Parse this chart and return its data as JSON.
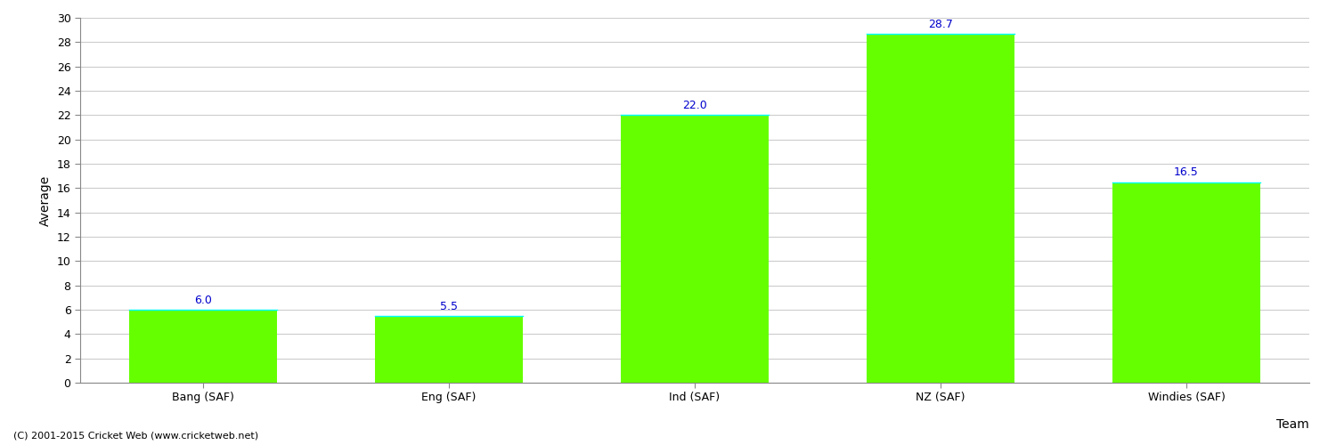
{
  "categories": [
    "Bang (SAF)",
    "Eng (SAF)",
    "Ind (SAF)",
    "NZ (SAF)",
    "Windies (SAF)"
  ],
  "values": [
    6.0,
    5.5,
    22.0,
    28.7,
    16.5
  ],
  "bar_color": "#66ff00",
  "bar_edgecolor": "#66ff00",
  "bar_top_edge_color": "#00ffff",
  "label_color": "#0000cc",
  "xlabel": "Team",
  "ylabel": "Average",
  "ylim": [
    0,
    30
  ],
  "yticks": [
    0,
    2,
    4,
    6,
    8,
    10,
    12,
    14,
    16,
    18,
    20,
    22,
    24,
    26,
    28,
    30
  ],
  "background_color": "#ffffff",
  "grid_color": "#cccccc",
  "footer_text": "(C) 2001-2015 Cricket Web (www.cricketweb.net)",
  "label_fontsize": 9,
  "axis_fontsize": 10,
  "tick_fontsize": 9,
  "footer_fontsize": 8
}
